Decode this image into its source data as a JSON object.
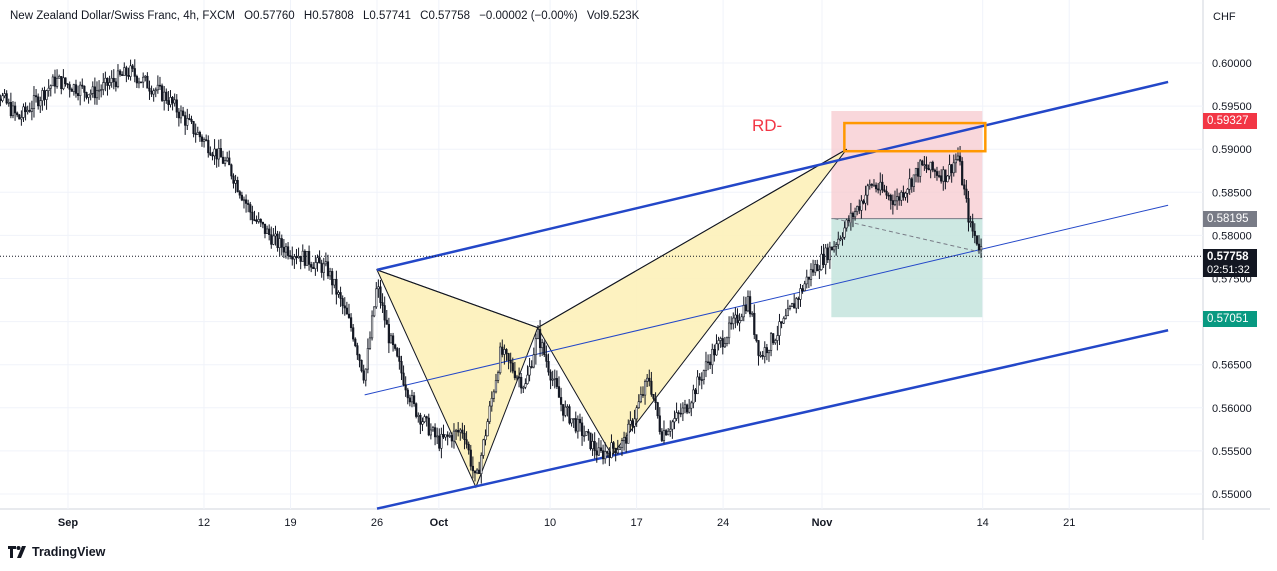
{
  "header": {
    "symbol": "New Zealand Dollar/Swiss Franc, 4h, FXCM",
    "open": "O0.57760",
    "high": "H0.57808",
    "low": "L0.57741",
    "close": "C0.57758",
    "change": "−0.00002 (−0.00%)",
    "volume": "Vol9.523K"
  },
  "currency": "CHF",
  "brand": "TradingView",
  "annotation": "RD-",
  "price_tags": {
    "target_top": "0.59327",
    "entry": "0.58195",
    "current": "0.57758",
    "countdown": "02:51:32",
    "stop_bottom": "0.57051"
  },
  "colors": {
    "up": "#131722",
    "down": "#131722",
    "channel": "#2347c8",
    "pattern_fill": "#fdf1b9",
    "loss_zone": "#f7c9cf",
    "profit_zone": "#c4e4dd",
    "rd_box": "#ff9800",
    "red_tag": "#f23645",
    "green_tag": "#089981",
    "gray_tag": "#787b86"
  },
  "chart_data": {
    "type": "candlestick",
    "title": "New Zealand Dollar/Swiss Franc, 4h, FXCM",
    "y_ticks": [
      "0.60000",
      "0.59500",
      "0.59000",
      "0.58500",
      "0.58000",
      "0.57500",
      "0.57000",
      "0.56500",
      "0.56000",
      "0.55500",
      "0.55000"
    ],
    "x_ticks": [
      {
        "label": "Sep",
        "date": "2023-09-01"
      },
      {
        "label": "12",
        "date": "2023-09-12"
      },
      {
        "label": "19",
        "date": "2023-09-19"
      },
      {
        "label": "26",
        "date": "2023-09-26"
      },
      {
        "label": "Oct",
        "date": "2023-10-01"
      },
      {
        "label": "10",
        "date": "2023-10-10"
      },
      {
        "label": "17",
        "date": "2023-10-17"
      },
      {
        "label": "24",
        "date": "2023-10-24"
      },
      {
        "label": "Nov",
        "date": "2023-11-01"
      },
      {
        "label": "14",
        "date": "2023-11-14"
      },
      {
        "label": "21",
        "date": "2023-11-21"
      }
    ],
    "ylim": [
      0.5485,
      0.6025
    ],
    "xlim": [
      "2023-08-25",
      "2023-11-30"
    ],
    "price_path": [
      [
        "2023-08-25",
        0.599
      ],
      [
        "2023-08-28",
        0.5935
      ],
      [
        "2023-08-31",
        0.598
      ],
      [
        "2023-09-03",
        0.5965
      ],
      [
        "2023-09-06",
        0.599
      ],
      [
        "2023-09-09",
        0.596
      ],
      [
        "2023-09-11",
        0.5925
      ],
      [
        "2023-09-14",
        0.588
      ],
      [
        "2023-09-16",
        0.582
      ],
      [
        "2023-09-18",
        0.579
      ],
      [
        "2023-09-20",
        0.5775
      ],
      [
        "2023-09-22",
        0.576
      ],
      [
        "2023-09-24",
        0.569
      ],
      [
        "2023-09-25",
        0.5635
      ],
      [
        "2023-09-26",
        0.5742
      ],
      [
        "2023-09-27",
        0.568
      ],
      [
        "2023-09-29",
        0.56
      ],
      [
        "2023-10-01",
        0.556
      ],
      [
        "2023-10-03",
        0.5575
      ],
      [
        "2023-10-04",
        0.5512
      ],
      [
        "2023-10-06",
        0.5665
      ],
      [
        "2023-10-08",
        0.5625
      ],
      [
        "2023-10-09",
        0.5685
      ],
      [
        "2023-10-11",
        0.56
      ],
      [
        "2023-10-13",
        0.5565
      ],
      [
        "2023-10-14",
        0.5545
      ],
      [
        "2023-10-16",
        0.556
      ],
      [
        "2023-10-18",
        0.5635
      ],
      [
        "2023-10-19",
        0.557
      ],
      [
        "2023-10-21",
        0.56
      ],
      [
        "2023-10-23",
        0.566
      ],
      [
        "2023-10-25",
        0.57
      ],
      [
        "2023-10-26",
        0.5725
      ],
      [
        "2023-10-27",
        0.566
      ],
      [
        "2023-10-29",
        0.57
      ],
      [
        "2023-10-31",
        0.5755
      ],
      [
        "2023-11-02",
        0.579
      ],
      [
        "2023-11-04",
        0.5835
      ],
      [
        "2023-11-05",
        0.586
      ],
      [
        "2023-11-07",
        0.584
      ],
      [
        "2023-11-09",
        0.588
      ],
      [
        "2023-11-11",
        0.587
      ],
      [
        "2023-11-12",
        0.5892
      ],
      [
        "2023-11-13",
        0.581
      ],
      [
        "2023-11-14",
        0.578
      ],
      [
        "2023-11-14",
        0.57758
      ]
    ],
    "channel_upper": [
      [
        "2023-09-26",
        0.576
      ],
      [
        "2023-11-29",
        0.5978
      ]
    ],
    "channel_lower": [
      [
        "2023-09-26",
        0.5483
      ],
      [
        "2023-11-29",
        0.569
      ]
    ],
    "inner_line": [
      [
        "2023-09-25",
        0.5615
      ],
      [
        "2023-11-29",
        0.5835
      ]
    ],
    "harmonic_pattern": {
      "X": [
        "2023-09-26",
        0.576
      ],
      "A": [
        "2023-10-04",
        0.5508
      ],
      "B": [
        "2023-10-09",
        0.5693
      ],
      "C": [
        "2023-10-15",
        0.5545
      ],
      "D": [
        "2023-11-03",
        0.59
      ]
    },
    "trade_setup": {
      "entry": 0.58195,
      "stop": 0.59327,
      "target": 0.57051,
      "start": "2023-11-02",
      "end": "2023-11-13"
    },
    "rd_zone": {
      "from": "2023-11-02",
      "to": "2023-11-13",
      "y_low": 0.59,
      "y_high": 0.5928
    },
    "current_price": 0.57758
  }
}
